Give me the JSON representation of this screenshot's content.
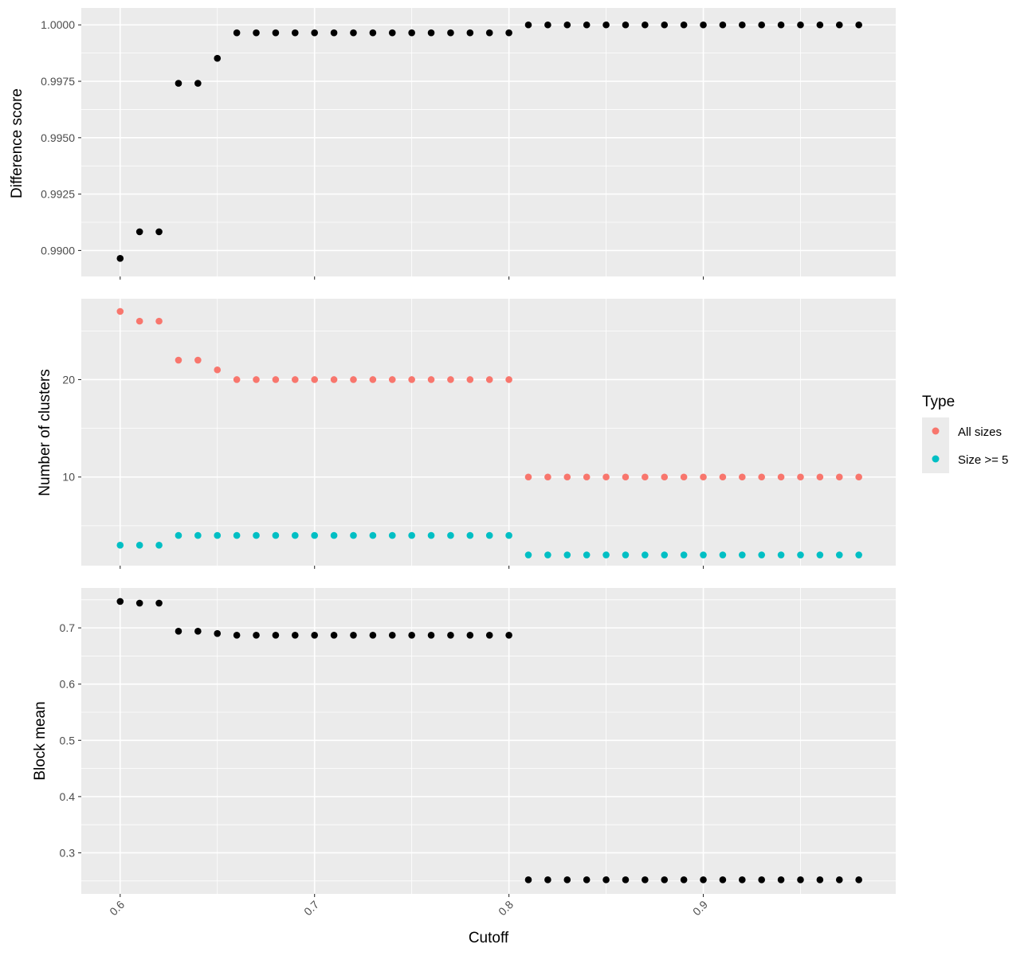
{
  "chart_data": [
    {
      "type": "scatter",
      "ylabel": "Difference score",
      "xlim": [
        0.58,
        0.999
      ],
      "ylim": [
        0.98885,
        1.00075
      ],
      "yticks": [
        "0.9900",
        "0.9925",
        "0.9950",
        "0.9975",
        "1.0000"
      ],
      "series": [
        {
          "color": "#000000",
          "x": [
            0.6,
            0.61,
            0.62,
            0.63,
            0.64,
            0.65,
            0.66,
            0.67,
            0.68,
            0.69,
            0.7,
            0.71,
            0.72,
            0.73,
            0.74,
            0.75,
            0.76,
            0.77,
            0.78,
            0.79,
            0.8,
            0.81,
            0.82,
            0.83,
            0.84,
            0.85,
            0.86,
            0.87,
            0.88,
            0.89,
            0.9,
            0.91,
            0.92,
            0.93,
            0.94,
            0.95,
            0.96,
            0.97,
            0.98
          ],
          "y": [
            0.98965,
            0.99083,
            0.99083,
            0.99741,
            0.99741,
            0.99852,
            0.99965,
            0.99965,
            0.99965,
            0.99965,
            0.99965,
            0.99965,
            0.99965,
            0.99965,
            0.99965,
            0.99965,
            0.99965,
            0.99965,
            0.99965,
            0.99965,
            0.99965,
            1.0,
            1.0,
            1.0,
            1.0,
            1.0,
            1.0,
            1.0,
            1.0,
            1.0,
            1.0,
            1.0,
            1.0,
            1.0,
            1.0,
            1.0,
            1.0,
            1.0,
            1.0
          ]
        }
      ]
    },
    {
      "type": "scatter",
      "ylabel": "Number of clusters",
      "xlim": [
        0.58,
        0.999
      ],
      "ylim": [
        0.9,
        28.3
      ],
      "yticks": [
        "10",
        "20"
      ],
      "legend": {
        "title": "Type",
        "position": "right"
      },
      "series": [
        {
          "name": "All sizes",
          "color": "#F8766D",
          "x": [
            0.6,
            0.61,
            0.62,
            0.63,
            0.64,
            0.65,
            0.66,
            0.67,
            0.68,
            0.69,
            0.7,
            0.71,
            0.72,
            0.73,
            0.74,
            0.75,
            0.76,
            0.77,
            0.78,
            0.79,
            0.8,
            0.81,
            0.82,
            0.83,
            0.84,
            0.85,
            0.86,
            0.87,
            0.88,
            0.89,
            0.9,
            0.91,
            0.92,
            0.93,
            0.94,
            0.95,
            0.96,
            0.97,
            0.98
          ],
          "y": [
            27,
            26,
            26,
            22,
            22,
            21,
            20,
            20,
            20,
            20,
            20,
            20,
            20,
            20,
            20,
            20,
            20,
            20,
            20,
            20,
            20,
            10,
            10,
            10,
            10,
            10,
            10,
            10,
            10,
            10,
            10,
            10,
            10,
            10,
            10,
            10,
            10,
            10,
            10
          ]
        },
        {
          "name": "Size >= 5",
          "color": "#00BFC4",
          "x": [
            0.6,
            0.61,
            0.62,
            0.63,
            0.64,
            0.65,
            0.66,
            0.67,
            0.68,
            0.69,
            0.7,
            0.71,
            0.72,
            0.73,
            0.74,
            0.75,
            0.76,
            0.77,
            0.78,
            0.79,
            0.8,
            0.81,
            0.82,
            0.83,
            0.84,
            0.85,
            0.86,
            0.87,
            0.88,
            0.89,
            0.9,
            0.91,
            0.92,
            0.93,
            0.94,
            0.95,
            0.96,
            0.97,
            0.98
          ],
          "y": [
            3,
            3,
            3,
            4,
            4,
            4,
            4,
            4,
            4,
            4,
            4,
            4,
            4,
            4,
            4,
            4,
            4,
            4,
            4,
            4,
            4,
            2,
            2,
            2,
            2,
            2,
            2,
            2,
            2,
            2,
            2,
            2,
            2,
            2,
            2,
            2,
            2,
            2,
            2
          ]
        }
      ]
    },
    {
      "type": "scatter",
      "ylabel": "Block mean",
      "xlabel": "Cutoff",
      "xlim": [
        0.58,
        0.999
      ],
      "ylim": [
        0.227,
        0.771
      ],
      "yticks": [
        "0.3",
        "0.4",
        "0.5",
        "0.6",
        "0.7"
      ],
      "xticks": [
        "0.6",
        "0.7",
        "0.8",
        "0.9"
      ],
      "series": [
        {
          "color": "#000000",
          "x": [
            0.6,
            0.61,
            0.62,
            0.63,
            0.64,
            0.65,
            0.66,
            0.67,
            0.68,
            0.69,
            0.7,
            0.71,
            0.72,
            0.73,
            0.74,
            0.75,
            0.76,
            0.77,
            0.78,
            0.79,
            0.8,
            0.81,
            0.82,
            0.83,
            0.84,
            0.85,
            0.86,
            0.87,
            0.88,
            0.89,
            0.9,
            0.91,
            0.92,
            0.93,
            0.94,
            0.95,
            0.96,
            0.97,
            0.98
          ],
          "y": [
            0.747,
            0.744,
            0.744,
            0.694,
            0.694,
            0.69,
            0.687,
            0.687,
            0.687,
            0.687,
            0.687,
            0.687,
            0.687,
            0.687,
            0.687,
            0.687,
            0.687,
            0.687,
            0.687,
            0.687,
            0.687,
            0.252,
            0.252,
            0.252,
            0.252,
            0.252,
            0.252,
            0.252,
            0.252,
            0.252,
            0.252,
            0.252,
            0.252,
            0.252,
            0.252,
            0.252,
            0.252,
            0.252,
            0.252
          ]
        }
      ]
    }
  ]
}
